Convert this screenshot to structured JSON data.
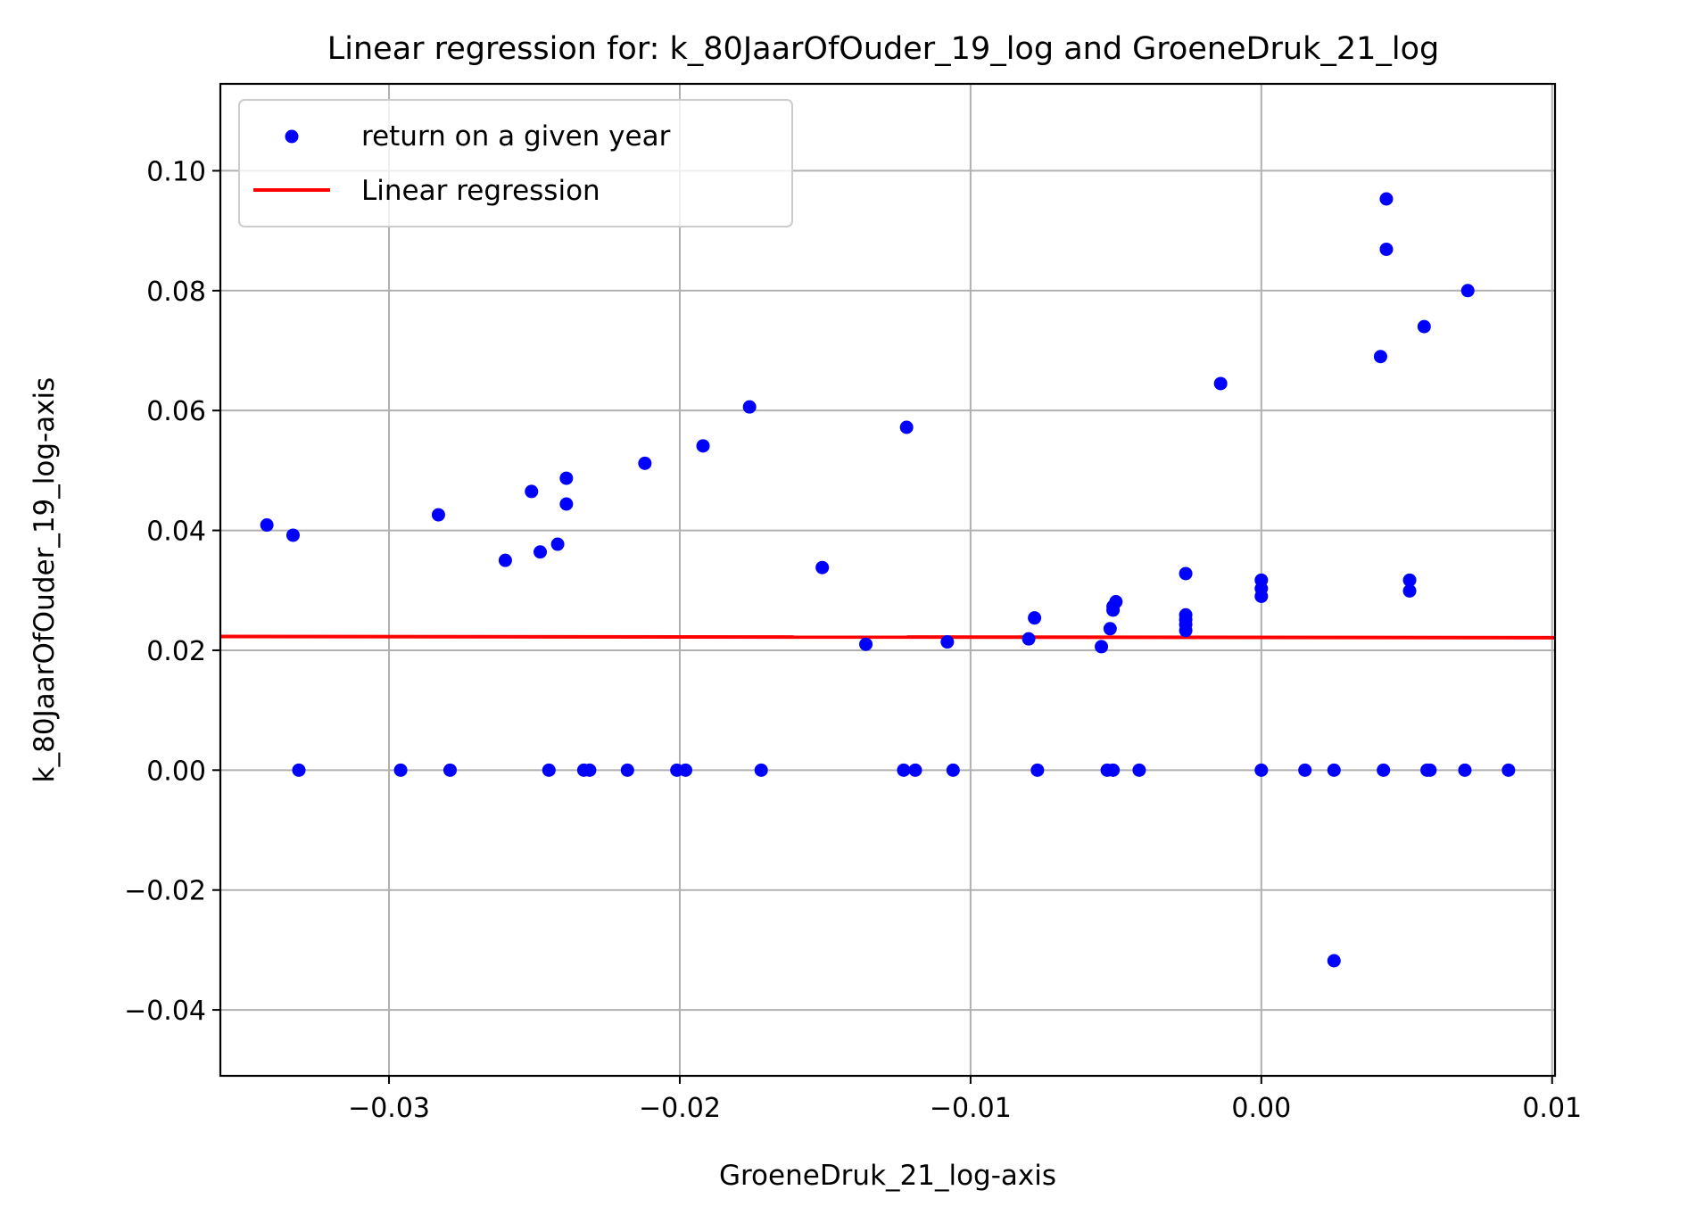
{
  "chart_data": {
    "type": "scatter",
    "title": "Linear regression for: k_80JaarOfOuder_19_log and GroeneDruk_21_log",
    "xlabel": "GroeneDruk_21_log-axis",
    "ylabel": "k_80JaarOfOuder_19_log-axis",
    "xlim": [
      -0.0358,
      0.0101
    ],
    "ylim": [
      -0.051,
      0.1145
    ],
    "xticks": [
      -0.03,
      -0.02,
      -0.01,
      0.0,
      0.01
    ],
    "xtick_labels": [
      "−0.03",
      "−0.02",
      "−0.01",
      "0.00",
      "0.01"
    ],
    "yticks": [
      -0.04,
      -0.02,
      0.0,
      0.02,
      0.04,
      0.06,
      0.08,
      0.1
    ],
    "ytick_labels": [
      "−0.04",
      "−0.02",
      "0.00",
      "0.02",
      "0.04",
      "0.06",
      "0.08",
      "0.10"
    ],
    "grid": true,
    "legend_position": "top-left",
    "series": [
      {
        "name": "return on a given year",
        "type": "scatter",
        "color": "#0000ff",
        "points": [
          [
            -0.0342,
            0.0409
          ],
          [
            -0.0333,
            0.0392
          ],
          [
            -0.0283,
            0.0426
          ],
          [
            -0.026,
            0.035
          ],
          [
            -0.0251,
            0.0465
          ],
          [
            -0.0248,
            0.0364
          ],
          [
            -0.0242,
            0.0377
          ],
          [
            -0.0239,
            0.0487
          ],
          [
            -0.0239,
            0.0444
          ],
          [
            -0.0212,
            0.0512
          ],
          [
            -0.0192,
            0.0541
          ],
          [
            -0.0176,
            0.0606
          ],
          [
            -0.0151,
            0.0338
          ],
          [
            -0.0136,
            0.021
          ],
          [
            -0.0122,
            0.0572
          ],
          [
            -0.0108,
            0.0214
          ],
          [
            -0.008,
            0.0219
          ],
          [
            -0.0078,
            0.0254
          ],
          [
            -0.0055,
            0.0206
          ],
          [
            -0.0052,
            0.0236
          ],
          [
            -0.0051,
            0.0267
          ],
          [
            -0.0051,
            0.0273
          ],
          [
            -0.005,
            0.0281
          ],
          [
            -0.0026,
            0.0328
          ],
          [
            -0.0026,
            0.0259
          ],
          [
            -0.0026,
            0.0251
          ],
          [
            -0.0026,
            0.0243
          ],
          [
            -0.0026,
            0.0233
          ],
          [
            -0.0014,
            0.0645
          ],
          [
            0.0,
            0.0317
          ],
          [
            0.0,
            0.0303
          ],
          [
            0.0,
            0.029
          ],
          [
            0.0041,
            0.069
          ],
          [
            0.0043,
            0.0953
          ],
          [
            0.0043,
            0.0869
          ],
          [
            0.0051,
            0.0317
          ],
          [
            0.0051,
            0.0299
          ],
          [
            0.0056,
            0.074
          ],
          [
            0.0071,
            0.08
          ],
          [
            0.0025,
            -0.0318
          ],
          [
            -0.0331,
            0.0
          ],
          [
            -0.0296,
            0.0
          ],
          [
            -0.0279,
            0.0
          ],
          [
            -0.0245,
            0.0
          ],
          [
            -0.0233,
            0.0
          ],
          [
            -0.0231,
            0.0
          ],
          [
            -0.0218,
            0.0
          ],
          [
            -0.0201,
            0.0
          ],
          [
            -0.0198,
            0.0
          ],
          [
            -0.0172,
            0.0
          ],
          [
            -0.0123,
            0.0
          ],
          [
            -0.0119,
            0.0
          ],
          [
            -0.0106,
            0.0
          ],
          [
            -0.0077,
            0.0
          ],
          [
            -0.0053,
            0.0
          ],
          [
            -0.0051,
            0.0
          ],
          [
            -0.0042,
            0.0
          ],
          [
            0.0,
            0.0
          ],
          [
            0.0015,
            0.0
          ],
          [
            0.0025,
            0.0
          ],
          [
            0.0042,
            0.0
          ],
          [
            0.0057,
            0.0
          ],
          [
            0.0058,
            0.0
          ],
          [
            0.007,
            0.0
          ],
          [
            0.0085,
            0.0
          ]
        ]
      },
      {
        "name": "Linear regression",
        "type": "line",
        "color": "#ff0000",
        "points": [
          [
            -0.0358,
            0.0223
          ],
          [
            0.0101,
            0.0221
          ]
        ]
      }
    ]
  }
}
